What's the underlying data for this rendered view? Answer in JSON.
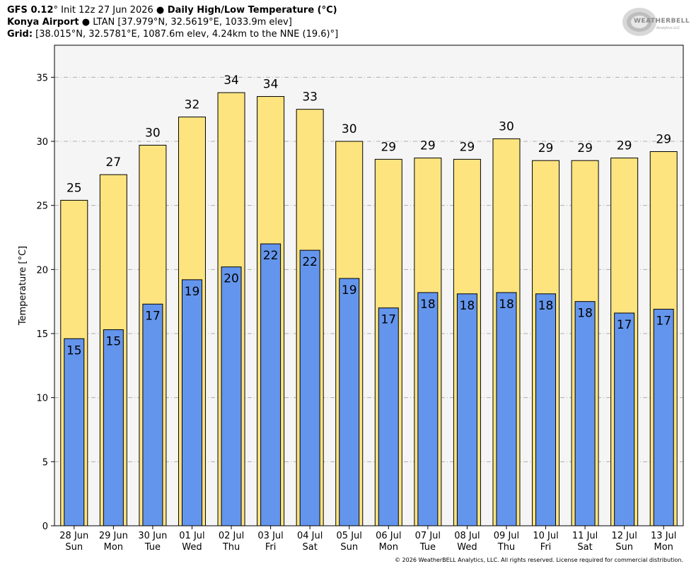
{
  "header": {
    "line1": {
      "model": "GFS 0.12",
      "deg": "°",
      "init": " Init 12z 27 Jun 2026 ",
      "bullet": "●",
      "title": " Daily High/Low Temperature (",
      "unit": "°C)"
    },
    "line2": {
      "station": "Konya Airport",
      "bullet": " ● ",
      "rest": "LTAN [37.979°N, 32.5619°E, 1033.9m elev]"
    },
    "line3": {
      "label": "Grid:",
      "rest": " [38.015°N, 32.5781°E, 1087.6m elev, 4.24km to the NNE (19.6)°]"
    }
  },
  "logo": {
    "text": "WEATHERBELL",
    "sub": "Analytics LLC"
  },
  "copyright": "© 2026 WeatherBELL Analytics, LLC. All rights reserved. License required for commercial distribution.",
  "colors": {
    "high": "#fde47f",
    "low": "#6495ed",
    "plot_bg": "#f5f5f5",
    "grid": "#b0b0b0",
    "border": "#000000"
  },
  "chart_data": {
    "type": "bar",
    "ylabel": "Temperature [°C]",
    "ylim": [
      0,
      37.5
    ],
    "yticks": [
      0,
      5,
      10,
      15,
      20,
      25,
      30,
      35
    ],
    "grid": true,
    "categories": [
      "28 Jun",
      "29 Jun",
      "30 Jun",
      "01 Jul",
      "02 Jul",
      "03 Jul",
      "04 Jul",
      "05 Jul",
      "06 Jul",
      "07 Jul",
      "08 Jul",
      "09 Jul",
      "10 Jul",
      "11 Jul",
      "12 Jul",
      "13 Jul"
    ],
    "weekdays": [
      "Sun",
      "Mon",
      "Tue",
      "Wed",
      "Thu",
      "Fri",
      "Sat",
      "Sun",
      "Mon",
      "Tue",
      "Wed",
      "Thu",
      "Fri",
      "Sat",
      "Sun",
      "Mon"
    ],
    "series": [
      {
        "values": [
          25.4,
          27.4,
          29.7,
          31.9,
          33.8,
          33.5,
          32.5,
          30.0,
          28.6,
          28.7,
          28.6,
          30.2,
          28.5,
          28.5,
          28.7,
          29.2
        ],
        "labels": [
          "25",
          "27",
          "30",
          "32",
          "34",
          "34",
          "33",
          "30",
          "29",
          "29",
          "29",
          "30",
          "29",
          "29",
          "29",
          "29"
        ]
      },
      {
        "values": [
          14.6,
          15.3,
          17.3,
          19.2,
          20.2,
          22.0,
          21.5,
          19.3,
          17.0,
          18.2,
          18.1,
          18.2,
          18.1,
          17.5,
          16.6,
          16.9
        ],
        "labels": [
          "15",
          "15",
          "17",
          "19",
          "20",
          "22",
          "22",
          "19",
          "17",
          "18",
          "18",
          "18",
          "18",
          "18",
          "17",
          "17"
        ]
      }
    ]
  }
}
